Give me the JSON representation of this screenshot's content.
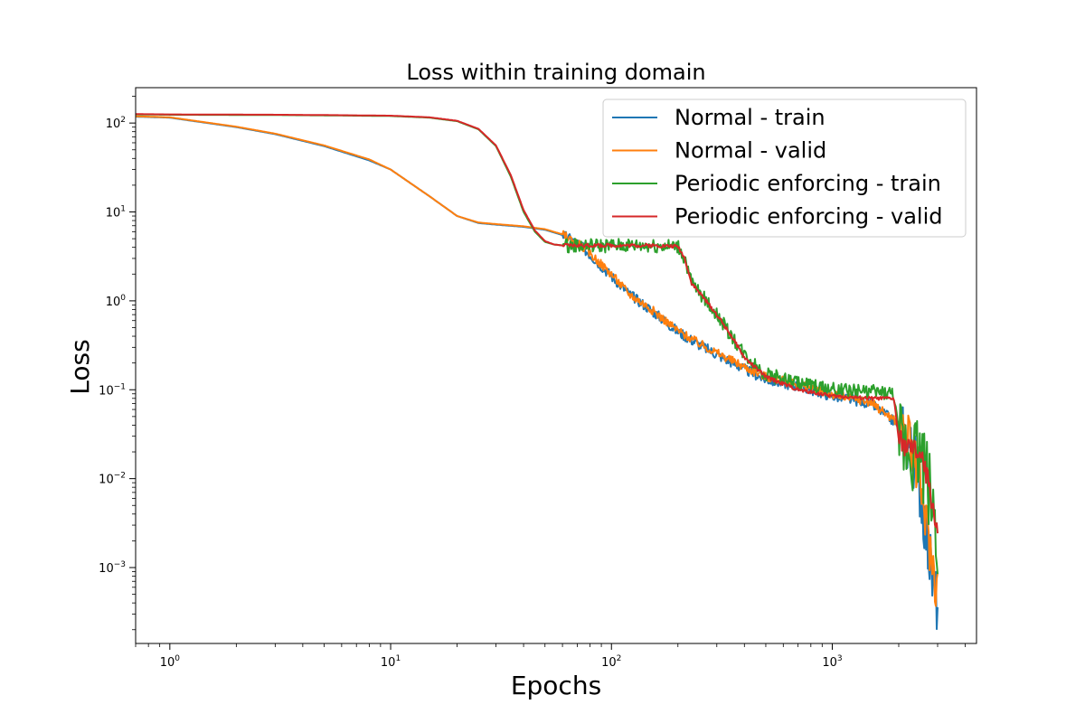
{
  "chart_data": {
    "type": "line",
    "title": "Loss within training domain",
    "xlabel": "Epochs",
    "ylabel": "Loss",
    "x_scale": "log",
    "y_scale": "log",
    "xlim": [
      0.7,
      4500
    ],
    "ylim": [
      0.00014,
      250
    ],
    "grid": false,
    "legend_position": "top-right",
    "x_ticks": [
      {
        "value": 1,
        "base": "10",
        "exp": "0"
      },
      {
        "value": 10,
        "base": "10",
        "exp": "1"
      },
      {
        "value": 100,
        "base": "10",
        "exp": "2"
      },
      {
        "value": 1000,
        "base": "10",
        "exp": "3"
      }
    ],
    "y_ticks": [
      {
        "value": 0.001,
        "base": "10",
        "exp": "−3"
      },
      {
        "value": 0.01,
        "base": "10",
        "exp": "−2"
      },
      {
        "value": 0.1,
        "base": "10",
        "exp": "−1"
      },
      {
        "value": 1,
        "base": "10",
        "exp": "0"
      },
      {
        "value": 10,
        "base": "10",
        "exp": "1"
      },
      {
        "value": 100,
        "base": "10",
        "exp": "2"
      }
    ],
    "series": [
      {
        "name": "Normal - train",
        "color": "#1f77b4",
        "noise": 0.06,
        "x": [
          0.7,
          1,
          2,
          3,
          5,
          8,
          10,
          15,
          20,
          25,
          30,
          40,
          50,
          60,
          70,
          80,
          100,
          120,
          150,
          200,
          250,
          300,
          400,
          500,
          700,
          1000,
          1500,
          2000,
          2300,
          2500,
          2700,
          2900,
          3000
        ],
        "y": [
          118,
          115,
          90,
          75,
          55,
          38,
          30,
          15,
          9,
          7.5,
          7.2,
          6.8,
          6.3,
          5.5,
          4.5,
          3.3,
          1.9,
          1.2,
          0.8,
          0.45,
          0.32,
          0.25,
          0.17,
          0.13,
          0.11,
          0.085,
          0.07,
          0.04,
          0.02,
          0.008,
          0.002,
          0.0005,
          0.0004
        ]
      },
      {
        "name": "Normal - valid",
        "color": "#ff7f0e",
        "noise": 0.05,
        "x": [
          0.7,
          1,
          2,
          3,
          5,
          8,
          10,
          15,
          20,
          25,
          30,
          40,
          50,
          60,
          70,
          80,
          100,
          120,
          150,
          200,
          250,
          300,
          400,
          500,
          700,
          1000,
          1500,
          2000,
          2300,
          2500,
          2700,
          2900,
          3000
        ],
        "y": [
          119,
          116,
          91,
          76,
          56,
          39,
          30,
          15,
          9,
          7.6,
          7.3,
          6.9,
          6.4,
          5.6,
          4.5,
          3.4,
          2.0,
          1.2,
          0.82,
          0.46,
          0.33,
          0.26,
          0.18,
          0.14,
          0.115,
          0.088,
          0.072,
          0.042,
          0.022,
          0.009,
          0.0025,
          0.0008,
          0.0006
        ]
      },
      {
        "name": "Periodic enforcing - train",
        "color": "#2ca02c",
        "noise": 0.08,
        "x": [
          0.7,
          1,
          3,
          5,
          10,
          15,
          20,
          25,
          30,
          35,
          40,
          45,
          50,
          55,
          60,
          80,
          100,
          150,
          200,
          215,
          230,
          260,
          300,
          350,
          400,
          500,
          700,
          1000,
          1500,
          1900,
          2000,
          2100,
          2500,
          2700,
          2900,
          3000
        ],
        "y": [
          125,
          124,
          123,
          122,
          120,
          115,
          105,
          85,
          55,
          25,
          10,
          6,
          4.6,
          4.3,
          4.2,
          4.2,
          4.2,
          4.2,
          4.1,
          3.0,
          1.6,
          1.1,
          0.7,
          0.4,
          0.25,
          0.15,
          0.12,
          0.1,
          0.095,
          0.09,
          0.03,
          0.025,
          0.02,
          0.01,
          0.004,
          0.002
        ]
      },
      {
        "name": "Periodic enforcing - valid",
        "color": "#d62728",
        "noise": 0.02,
        "x": [
          0.7,
          1,
          3,
          5,
          10,
          15,
          20,
          25,
          30,
          35,
          40,
          45,
          50,
          55,
          60,
          80,
          100,
          150,
          200,
          215,
          230,
          260,
          300,
          350,
          400,
          500,
          700,
          1000,
          1500,
          1900,
          2000,
          2100,
          2500,
          2700,
          2900,
          3000
        ],
        "y": [
          126,
          125,
          124,
          123,
          121,
          116,
          106,
          86,
          56,
          26,
          10.5,
          6.2,
          4.7,
          4.3,
          4.2,
          4.2,
          4.2,
          4.2,
          4.1,
          3.0,
          1.6,
          1.1,
          0.7,
          0.4,
          0.23,
          0.14,
          0.1,
          0.085,
          0.08,
          0.08,
          0.028,
          0.024,
          0.019,
          0.01,
          0.004,
          0.0025
        ]
      }
    ]
  }
}
